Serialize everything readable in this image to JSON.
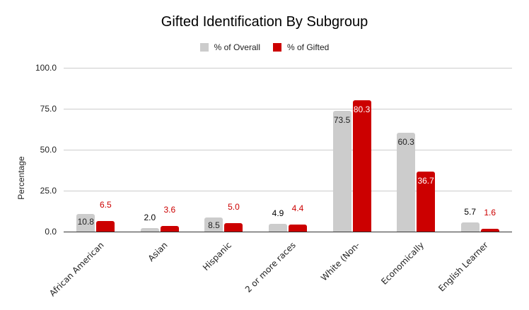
{
  "chart_data": {
    "type": "bar",
    "title": "Gifted Identification By Subgroup",
    "xlabel": "",
    "ylabel": "Percentage",
    "ylim": [
      0,
      100
    ],
    "yticks": [
      "0.0",
      "25.0",
      "50.0",
      "75.0",
      "100.0"
    ],
    "grid": true,
    "legend_position": "top",
    "categories": [
      "African American",
      "Asian",
      "Hispanic",
      "2 or more races",
      "White (Non-",
      "Economically",
      "English Learner"
    ],
    "series": [
      {
        "name": "% of Overall",
        "color": "#cccccc",
        "label_color": "#000000",
        "values": [
          10.8,
          2.0,
          8.5,
          4.9,
          73.5,
          60.3,
          5.7
        ]
      },
      {
        "name": "% of Gifted",
        "color": "#cc0000",
        "label_color": "#cc0000",
        "values": [
          6.5,
          3.6,
          5.0,
          4.4,
          80.3,
          36.7,
          1.6
        ]
      }
    ]
  }
}
